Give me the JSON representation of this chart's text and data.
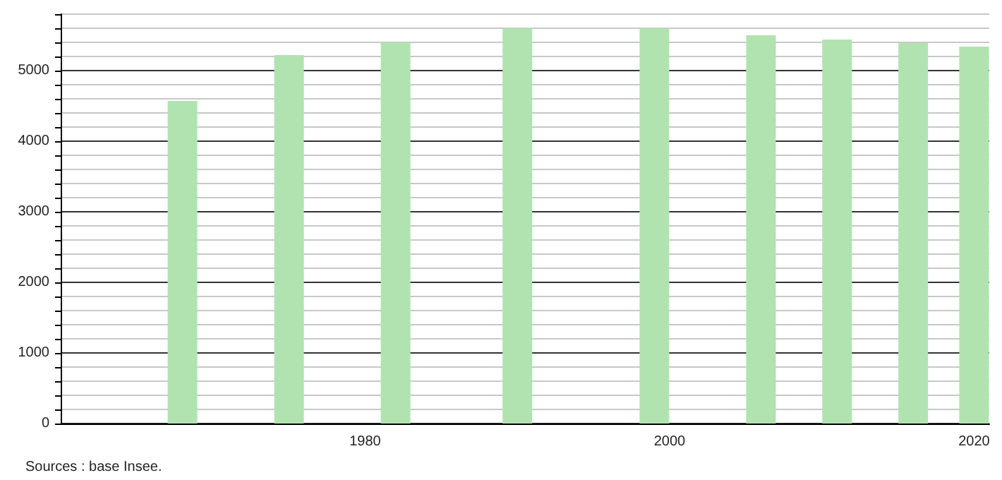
{
  "chart_data": {
    "type": "bar",
    "x": [
      1968,
      1975,
      1982,
      1990,
      1999,
      2006,
      2011,
      2016,
      2020
    ],
    "values": [
      4570,
      5220,
      5400,
      5600,
      5600,
      5500,
      5440,
      5390,
      5340
    ],
    "color": "#b0e3b0",
    "xlim": [
      1960,
      2021
    ],
    "xticks": [
      1980,
      2000,
      2020
    ],
    "ylim": [
      0,
      5800
    ],
    "yticks": [
      0,
      {
        "value": 200,
        "label": null
      },
      {
        "value": 400,
        "label": null
      },
      {
        "value": 600,
        "label": null
      },
      {
        "value": 800,
        "label": null
      },
      1000,
      {
        "value": 1200,
        "label": null
      },
      {
        "value": 1400,
        "label": null
      },
      {
        "value": 1600,
        "label": null
      },
      {
        "value": 1800,
        "label": null
      },
      2000,
      {
        "value": 2200,
        "label": null
      },
      {
        "value": 2400,
        "label": null
      },
      {
        "value": 2600,
        "label": null
      },
      {
        "value": 2800,
        "label": null
      },
      3000,
      {
        "value": 3200,
        "label": null
      },
      {
        "value": 3400,
        "label": null
      },
      {
        "value": 3600,
        "label": null
      },
      {
        "value": 3800,
        "label": null
      },
      4000,
      {
        "value": 4200,
        "label": null
      },
      {
        "value": 4400,
        "label": null
      },
      {
        "value": 4600,
        "label": null
      },
      {
        "value": 4800,
        "label": null
      },
      5000,
      {
        "value": 5200,
        "label": null
      },
      {
        "value": 5400,
        "label": null
      },
      {
        "value": 5600,
        "label": null
      },
      {
        "value": 5800,
        "label": null
      }
    ],
    "grid": "y",
    "annotations": [
      "Sources : base Insee."
    ]
  }
}
